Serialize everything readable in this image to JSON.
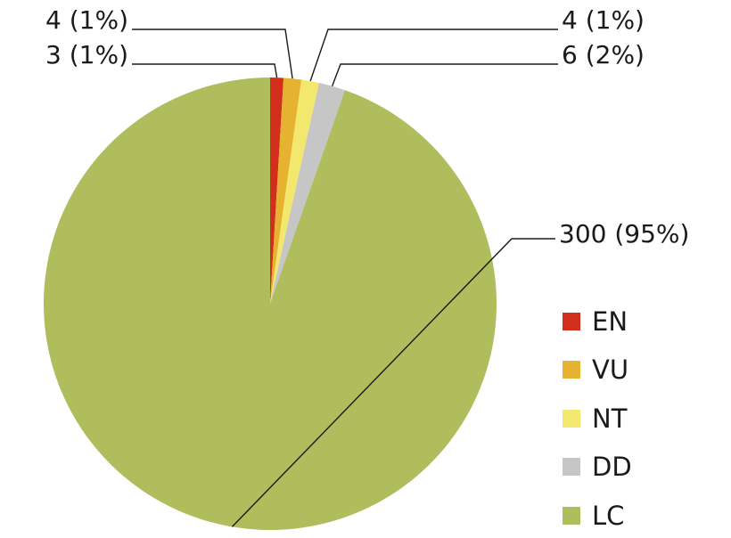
{
  "chart_data": {
    "type": "pie",
    "categories": [
      "EN",
      "VU",
      "NT",
      "DD",
      "LC"
    ],
    "values": [
      3,
      4,
      4,
      6,
      300
    ],
    "percent_labels": [
      "1%",
      "1%",
      "1%",
      "2%",
      "95%"
    ],
    "data_labels": [
      "3 (1%)",
      "4 (1%)",
      "4 (1%)",
      "6 (2%)",
      "300 (95%)"
    ],
    "colors": [
      "#d12e1b",
      "#e6b330",
      "#f3e86e",
      "#c6c6c6",
      "#afbd5c"
    ],
    "start_angle_deg": 0,
    "direction": "clockwise",
    "legend": {
      "position": "right",
      "entries": [
        "EN",
        "VU",
        "NT",
        "DD",
        "LC"
      ]
    }
  }
}
